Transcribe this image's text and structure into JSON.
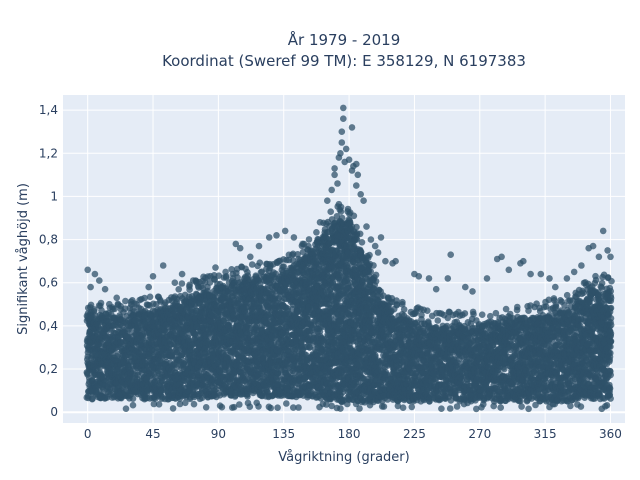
{
  "chart_data": {
    "type": "scatter",
    "title_lines": [
      "År 1979 - 2019",
      "Koordinat (Sweref 99 TM): E 358129, N 6197383"
    ],
    "xlabel": "Vågriktning (grader)",
    "ylabel": "Signifikant våghöjd (m)",
    "xlim": [
      -17,
      370
    ],
    "ylim": [
      -0.05,
      1.47
    ],
    "x_ticks": [
      0,
      45,
      90,
      135,
      180,
      225,
      270,
      315,
      360
    ],
    "y_ticks": [
      0,
      0.2,
      0.4,
      0.6,
      0.8,
      1,
      1.2,
      1.4
    ],
    "y_tick_labels": [
      "0",
      "0,2",
      "0,4",
      "0,6",
      "0,8",
      "1",
      "1,2",
      "1,4"
    ],
    "x_tick_labels": [
      "0",
      "45",
      "90",
      "135",
      "180",
      "225",
      "270",
      "315",
      "360"
    ],
    "marker_color": "#2f5269",
    "plot_bg": "#e5ecf6",
    "grid": true,
    "density_envelope": {
      "direction_deg": [
        0,
        15,
        30,
        45,
        60,
        75,
        90,
        105,
        120,
        135,
        150,
        165,
        172,
        180,
        190,
        200,
        210,
        225,
        240,
        255,
        270,
        285,
        300,
        315,
        330,
        345,
        360
      ],
      "upper_dense_m": [
        0.46,
        0.44,
        0.45,
        0.47,
        0.52,
        0.55,
        0.58,
        0.61,
        0.63,
        0.65,
        0.72,
        0.84,
        0.9,
        0.9,
        0.74,
        0.56,
        0.46,
        0.42,
        0.4,
        0.4,
        0.4,
        0.41,
        0.43,
        0.45,
        0.48,
        0.55,
        0.58
      ],
      "lower_m": [
        0.06,
        0.06,
        0.06,
        0.06,
        0.06,
        0.06,
        0.07,
        0.07,
        0.07,
        0.07,
        0.07,
        0.06,
        0.05,
        0.04,
        0.04,
        0.05,
        0.05,
        0.05,
        0.05,
        0.05,
        0.05,
        0.05,
        0.05,
        0.05,
        0.05,
        0.06,
        0.06
      ]
    },
    "outliers": [
      [
        0,
        0.66
      ],
      [
        5,
        0.64
      ],
      [
        8,
        0.61
      ],
      [
        2,
        0.58
      ],
      [
        12,
        0.57
      ],
      [
        20,
        0.53
      ],
      [
        30,
        0.5
      ],
      [
        42,
        0.58
      ],
      [
        45,
        0.63
      ],
      [
        50,
        0.52
      ],
      [
        52,
        0.68
      ],
      [
        60,
        0.6
      ],
      [
        65,
        0.64
      ],
      [
        75,
        0.6
      ],
      [
        88,
        0.67
      ],
      [
        95,
        0.65
      ],
      [
        100,
        0.64
      ],
      [
        102,
        0.78
      ],
      [
        105,
        0.76
      ],
      [
        112,
        0.72
      ],
      [
        118,
        0.77
      ],
      [
        125,
        0.81
      ],
      [
        130,
        0.82
      ],
      [
        136,
        0.84
      ],
      [
        142,
        0.81
      ],
      [
        148,
        0.78
      ],
      [
        152,
        0.77
      ],
      [
        158,
        0.79
      ],
      [
        160,
        0.88
      ],
      [
        165,
        0.98
      ],
      [
        168,
        1.03
      ],
      [
        170,
        1.1
      ],
      [
        170,
        1.13
      ],
      [
        172,
        1.06
      ],
      [
        173,
        1.18
      ],
      [
        174,
        1.2
      ],
      [
        175,
        1.25
      ],
      [
        175,
        1.3
      ],
      [
        176,
        1.36
      ],
      [
        176,
        1.41
      ],
      [
        177,
        1.16
      ],
      [
        178,
        1.22
      ],
      [
        180,
        1.17
      ],
      [
        182,
        1.32
      ],
      [
        182,
        1.12
      ],
      [
        183,
        1.14
      ],
      [
        185,
        1.15
      ],
      [
        186,
        1.1
      ],
      [
        185,
        1.05
      ],
      [
        188,
        1.01
      ],
      [
        190,
        0.98
      ],
      [
        192,
        0.86
      ],
      [
        195,
        0.8
      ],
      [
        198,
        0.77
      ],
      [
        200,
        0.74
      ],
      [
        202,
        0.81
      ],
      [
        205,
        0.7
      ],
      [
        210,
        0.69
      ],
      [
        212,
        0.7
      ],
      [
        225,
        0.64
      ],
      [
        228,
        0.63
      ],
      [
        235,
        0.62
      ],
      [
        240,
        0.57
      ],
      [
        248,
        0.62
      ],
      [
        250,
        0.73
      ],
      [
        260,
        0.58
      ],
      [
        265,
        0.56
      ],
      [
        275,
        0.62
      ],
      [
        282,
        0.71
      ],
      [
        285,
        0.72
      ],
      [
        290,
        0.66
      ],
      [
        298,
        0.69
      ],
      [
        300,
        0.7
      ],
      [
        305,
        0.64
      ],
      [
        312,
        0.64
      ],
      [
        318,
        0.62
      ],
      [
        322,
        0.58
      ],
      [
        330,
        0.62
      ],
      [
        335,
        0.65
      ],
      [
        340,
        0.68
      ],
      [
        345,
        0.76
      ],
      [
        348,
        0.77
      ],
      [
        352,
        0.72
      ],
      [
        355,
        0.84
      ],
      [
        358,
        0.75
      ],
      [
        360,
        0.72
      ]
    ]
  }
}
